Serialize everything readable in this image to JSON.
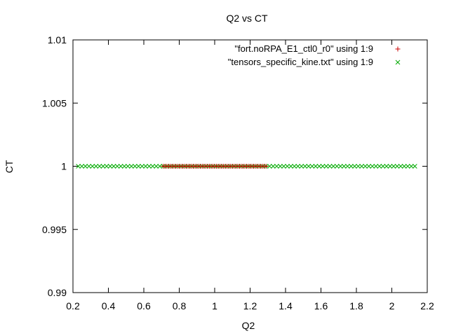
{
  "chart_data": {
    "type": "scatter",
    "title": "Q2 vs CT",
    "xlabel": "Q2",
    "ylabel": "CT",
    "xlim": [
      0.2,
      2.2
    ],
    "ylim": [
      0.99,
      1.01
    ],
    "xticks": [
      "0.2",
      "0.4",
      "0.6",
      "0.8",
      "1",
      "1.2",
      "1.4",
      "1.6",
      "1.8",
      "2",
      "2.2"
    ],
    "yticks": [
      "0.99",
      "0.995",
      "1",
      "1.005",
      "1.01"
    ],
    "grid": false,
    "legend_position": "top-right",
    "series": [
      {
        "name": "\"fort.noRPA_E1_ctl0_r0\" using 1:9",
        "marker": "plus",
        "color": "#cc0000",
        "x_range": [
          0.71,
          1.29
        ],
        "x_step": 0.01,
        "y": 1
      },
      {
        "name": "\"tensors_specific_kine.txt\" using 1:9",
        "marker": "cross",
        "color": "#00aa00",
        "x_range": [
          0.23,
          2.13
        ],
        "x_step": 0.02,
        "y": 1
      }
    ]
  }
}
